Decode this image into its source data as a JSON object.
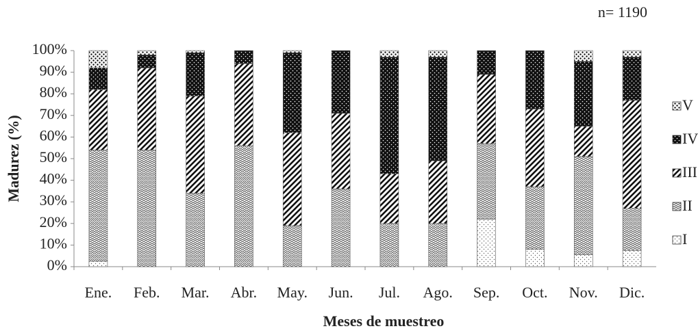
{
  "chart_data": {
    "type": "stacked_bar",
    "annotation": "n=  1190",
    "y_label": "Madurez (%)",
    "x_label": "Meses de muestreo",
    "categories": [
      "Ene.",
      "Feb.",
      "Mar.",
      "Abr.",
      "May.",
      "Jun.",
      "Jul.",
      "Ago.",
      "Sep.",
      "Oct.",
      "Nov.",
      "Dic."
    ],
    "series": [
      {
        "name": "I",
        "color": "#666666",
        "values": [
          2.5,
          0,
          0,
          0,
          0,
          0,
          0,
          0,
          22,
          8,
          5.5,
          7.5
        ]
      },
      {
        "name": "II",
        "color": "#555555",
        "values": [
          51.5,
          54,
          34,
          56,
          19,
          36,
          20,
          20,
          35,
          29,
          45.5,
          19.5
        ]
      },
      {
        "name": "III",
        "color": "#111111",
        "values": [
          28,
          38,
          45,
          38,
          43,
          35,
          23,
          29,
          32,
          36,
          14,
          50
        ]
      },
      {
        "name": "IV",
        "color": "#111111",
        "values": [
          10,
          6,
          20,
          6,
          37,
          29,
          54,
          48,
          11,
          27,
          30,
          20
        ]
      },
      {
        "name": "V",
        "color": "#111111",
        "values": [
          8,
          2,
          1,
          0,
          1,
          0,
          3,
          3,
          0,
          0,
          5,
          3
        ]
      }
    ],
    "ylim": [
      0,
      100
    ],
    "yticks": [
      {
        "value": 0,
        "label": "0%"
      },
      {
        "value": 10,
        "label": "10%"
      },
      {
        "value": 20,
        "label": "20%"
      },
      {
        "value": 30,
        "label": "30%"
      },
      {
        "value": 40,
        "label": "40%"
      },
      {
        "value": 50,
        "label": "50%"
      },
      {
        "value": 60,
        "label": "60%"
      },
      {
        "value": 70,
        "label": "70%"
      },
      {
        "value": 80,
        "label": "80%"
      },
      {
        "value": 90,
        "label": "90%"
      },
      {
        "value": 100,
        "label": "100%"
      }
    ],
    "legend": "right"
  }
}
